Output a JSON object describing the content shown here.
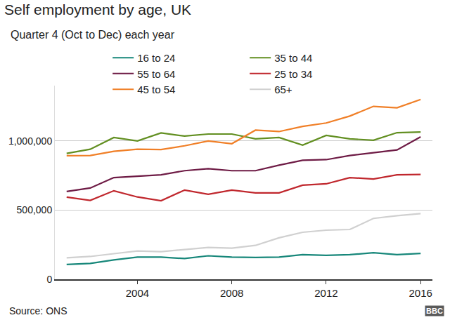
{
  "chart_data": {
    "type": "line",
    "title": "Self employment by age, UK",
    "subtitle": "Quarter 4 (Oct to Dec) each year",
    "source": "Source: ONS",
    "logo": "BBC",
    "x": [
      2001,
      2002,
      2003,
      2004,
      2005,
      2006,
      2007,
      2008,
      2009,
      2010,
      2011,
      2012,
      2013,
      2014,
      2015,
      2016
    ],
    "xlim": [
      2000.5,
      2016.5
    ],
    "xticks": [
      2004,
      2008,
      2012,
      2016
    ],
    "ylim": [
      0,
      1400000
    ],
    "yticks": [
      0,
      {
        "value": 500000,
        "label": "500,000"
      },
      {
        "value": 1000000,
        "label": "1,000,000"
      }
    ],
    "grid": true,
    "legend": "top",
    "series": [
      {
        "name": "16 to 24",
        "color": "#17877a",
        "values": [
          107000,
          115000,
          140000,
          160000,
          160000,
          150000,
          170000,
          160000,
          158000,
          160000,
          178000,
          173000,
          178000,
          192000,
          178000,
          187000
        ]
      },
      {
        "name": "35 to 44",
        "color": "#628f21",
        "values": [
          910000,
          940000,
          1025000,
          1000000,
          1058000,
          1035000,
          1050000,
          1050000,
          1015000,
          1025000,
          970000,
          1040000,
          1015000,
          1005000,
          1060000,
          1065000
        ]
      },
      {
        "name": "55 to 64",
        "color": "#6e1b45",
        "values": [
          635000,
          660000,
          735000,
          745000,
          755000,
          785000,
          800000,
          785000,
          785000,
          825000,
          860000,
          865000,
          895000,
          915000,
          935000,
          1030000
        ]
      },
      {
        "name": "25 to 34",
        "color": "#c0272d",
        "values": [
          594000,
          570000,
          640000,
          595000,
          568000,
          645000,
          615000,
          645000,
          625000,
          625000,
          680000,
          690000,
          735000,
          725000,
          755000,
          758000
        ]
      },
      {
        "name": "45 to 54",
        "color": "#f07f27",
        "values": [
          893000,
          895000,
          925000,
          940000,
          938000,
          965000,
          1000000,
          980000,
          1078000,
          1068000,
          1105000,
          1130000,
          1180000,
          1250000,
          1240000,
          1300000
        ]
      },
      {
        "name": "65+",
        "color": "#d0d0d0",
        "values": [
          155000,
          165000,
          185000,
          205000,
          200000,
          215000,
          230000,
          225000,
          245000,
          300000,
          340000,
          355000,
          360000,
          440000,
          460000,
          475000
        ]
      }
    ]
  }
}
